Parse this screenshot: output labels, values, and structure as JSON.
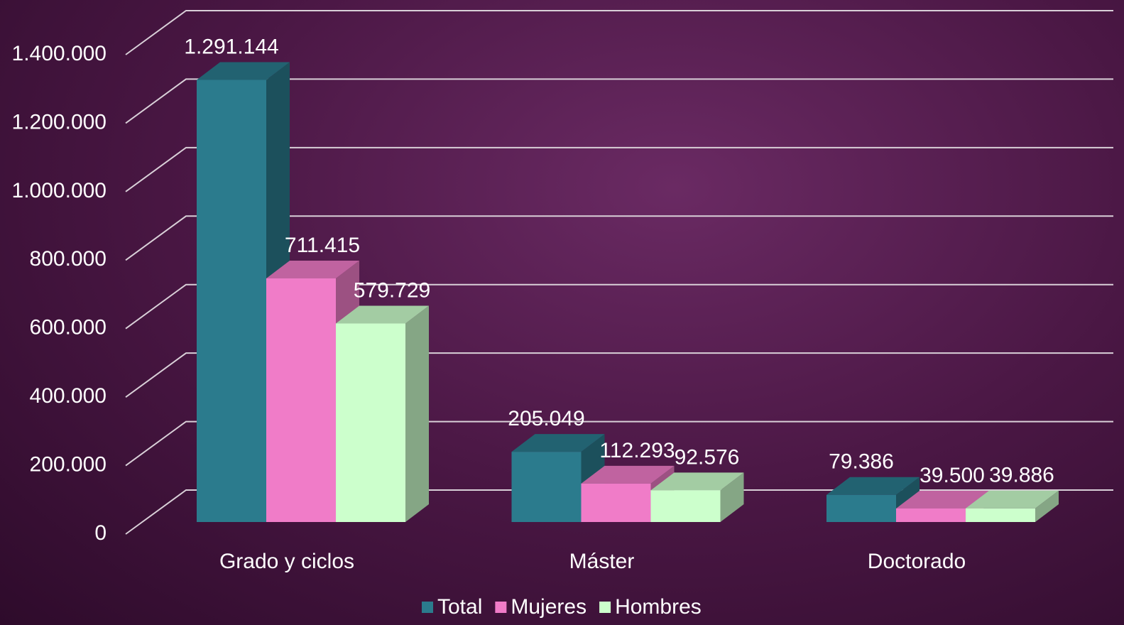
{
  "chart_data": {
    "type": "bar3d",
    "categories": [
      "Grado y ciclos",
      "Máster",
      "Doctorado"
    ],
    "series": [
      {
        "name": "Total",
        "color": "#2b7b8d",
        "values": [
          1291144,
          205049,
          79386
        ],
        "value_labels": [
          "1.291.144",
          "205.049",
          "79.386"
        ]
      },
      {
        "name": "Mujeres",
        "color": "#f07cc8",
        "values": [
          711415,
          112293,
          39500
        ],
        "value_labels": [
          "711.415",
          "112.293",
          "39.500"
        ]
      },
      {
        "name": "Hombres",
        "color": "#ccffcc",
        "values": [
          579729,
          92576,
          39886
        ],
        "value_labels": [
          "579.729",
          "92.576",
          "39.886"
        ]
      }
    ],
    "ylim": [
      0,
      1400000
    ],
    "yticks": [
      0,
      {
        "value": 200000,
        "label": "200.000"
      },
      {
        "value": 400000,
        "label": "400.000"
      },
      {
        "value": 600000,
        "label": "600.000"
      },
      {
        "value": 800000,
        "label": "800.000"
      },
      {
        "value": 1000000,
        "label": "1.000.000"
      },
      {
        "value": 1200000,
        "label": "1.200.000"
      },
      {
        "value": 1400000,
        "label": "1.400.000"
      }
    ],
    "grid": true,
    "legend": "bottom"
  }
}
